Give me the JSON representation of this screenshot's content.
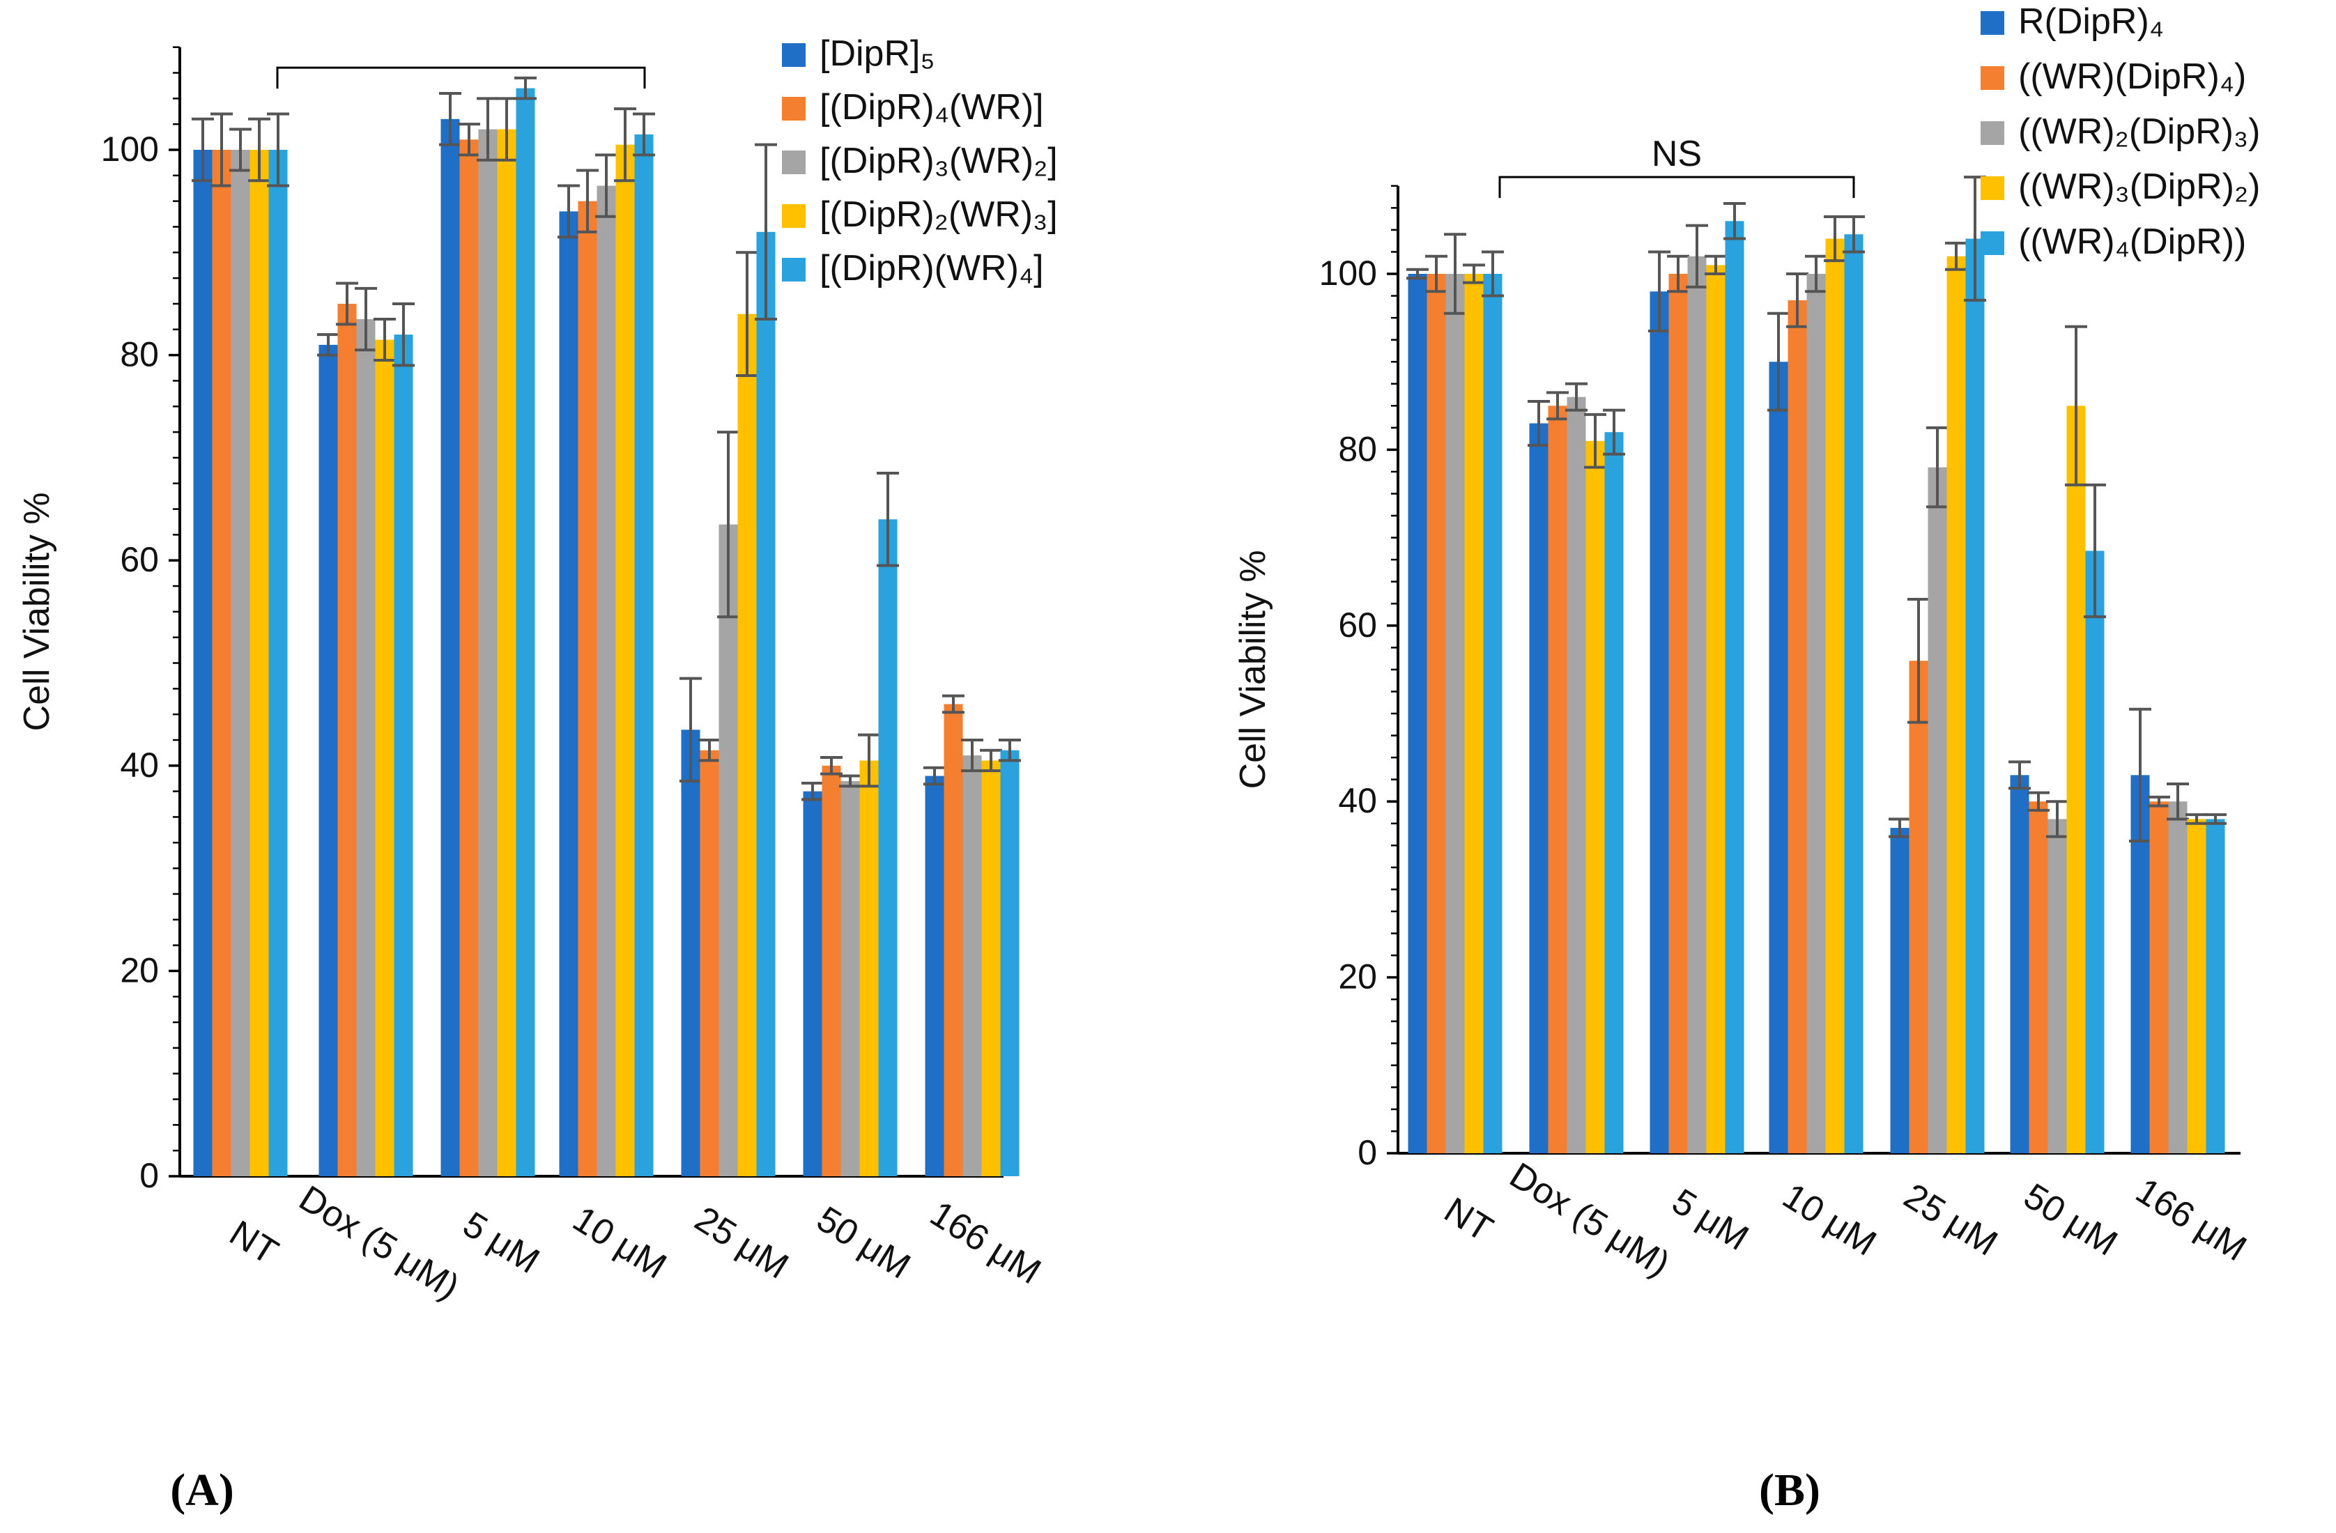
{
  "panels": [
    {
      "label": "(A)",
      "chart_data": {
        "type": "bar",
        "ylabel": "Cell Viability %",
        "xlabel": "",
        "ylim": [
          0,
          110
        ],
        "yticks": [
          0,
          20,
          40,
          60,
          80,
          100
        ],
        "categories": [
          "NT",
          "Dox (5 μM)",
          "5 μM",
          "10 μM",
          "25 μM",
          "50 μM",
          "166 μM"
        ],
        "series": [
          {
            "name": "[DipR]₅",
            "color": "#1F6FC6",
            "values": [
              100,
              81,
              103,
              94,
              43.5,
              37.5,
              39
            ],
            "errors": [
              3,
              1,
              2.5,
              2.5,
              5,
              0.8,
              0.8
            ]
          },
          {
            "name": "[(DipR)₄(WR)]",
            "color": "#F47F31",
            "values": [
              100,
              85,
              101,
              95,
              41.5,
              40,
              46
            ],
            "errors": [
              3.5,
              2,
              1.5,
              3,
              1,
              0.8,
              0.8
            ]
          },
          {
            "name": "[(DipR)₃(WR)₂]",
            "color": "#A5A5A5",
            "values": [
              100,
              83.5,
              102,
              96.5,
              63.5,
              38.5,
              41
            ],
            "errors": [
              2,
              3,
              3,
              3,
              9,
              0.5,
              1.5
            ]
          },
          {
            "name": "[(DipR)₂(WR)₃]",
            "color": "#FFC000",
            "values": [
              100,
              81.5,
              102,
              100.5,
              84,
              40.5,
              40.5
            ],
            "errors": [
              3,
              2,
              3,
              3.5,
              6,
              2.5,
              1
            ]
          },
          {
            "name": "[(DipR)(WR)₄]",
            "color": "#29A2DD",
            "values": [
              100,
              82,
              106,
              101.5,
              92,
              64,
              41.5
            ],
            "errors": [
              3.5,
              3,
              1,
              2,
              8.5,
              4.5,
              1
            ]
          }
        ],
        "annotation": {
          "text": "",
          "from": "NT",
          "to": "10 μM",
          "y": 108
        }
      }
    },
    {
      "label": "(B)",
      "chart_data": {
        "type": "bar",
        "ylabel": "Cell Viability %",
        "xlabel": "",
        "ylim": [
          0,
          110
        ],
        "yticks": [
          0,
          20,
          40,
          60,
          80,
          100
        ],
        "categories": [
          "NT",
          "Dox (5 μM)",
          "5 μM",
          "10 μM",
          "25 μM",
          "50 μM",
          "166 μM"
        ],
        "series": [
          {
            "name": "R(DipR)₄",
            "color": "#1F6FC6",
            "values": [
              100,
              83,
              98,
              90,
              37,
              43,
              43
            ],
            "errors": [
              0.5,
              2.5,
              4.5,
              5.5,
              1,
              1.5,
              7.5
            ]
          },
          {
            "name": "((WR)(DipR)₄)",
            "color": "#F47F31",
            "values": [
              100,
              85,
              100,
              97,
              56,
              40,
              40
            ],
            "errors": [
              2,
              1.5,
              2,
              3,
              7,
              1,
              0.5
            ]
          },
          {
            "name": "((WR)₂(DipR)₃)",
            "color": "#A5A5A5",
            "values": [
              100,
              86,
              102,
              100,
              78,
              38,
              40
            ],
            "errors": [
              4.5,
              1.5,
              3.5,
              2,
              4.5,
              2,
              2
            ]
          },
          {
            "name": "((WR)₃(DipR)₂)",
            "color": "#FFC000",
            "values": [
              100,
              81,
              101,
              104,
              102,
              85,
              38
            ],
            "errors": [
              1,
              3,
              1,
              2.5,
              1.5,
              9,
              0.5
            ]
          },
          {
            "name": "((WR)₄(DipR))",
            "color": "#29A2DD",
            "values": [
              100,
              82,
              106,
              104.5,
              104,
              68.5,
              38
            ],
            "errors": [
              2.5,
              2.5,
              2,
              2,
              7,
              7.5,
              0.5
            ]
          }
        ],
        "annotation": {
          "text": "NS",
          "from": "NT",
          "to": "10 μM",
          "y": 111
        }
      }
    }
  ]
}
